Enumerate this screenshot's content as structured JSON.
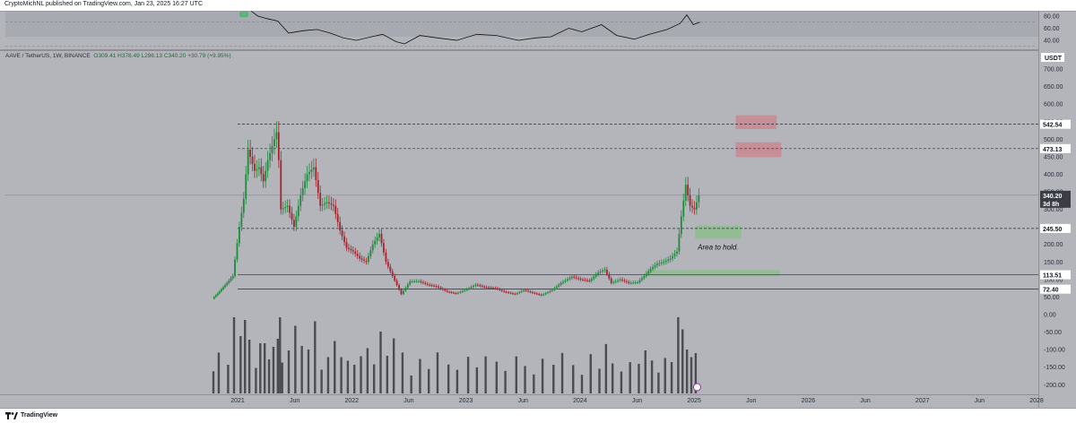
{
  "header": {
    "published": "CryptoMichNL published on TradingView.com, Jan 23, 2025 16:27 UTC"
  },
  "footer": {
    "brand": "TradingView"
  },
  "legend": {
    "symbol": "AAVE / TetherUS, 1W, BINANCE",
    "ohlc": "O309.41 H378.49 L296.13 C340.20 +30.79 (+9.95%)"
  },
  "colors": {
    "up": "#1f8a3c",
    "down": "#a3242c",
    "volume": "#4a4c52",
    "resistance_zone": "#c98a94",
    "support_zone": "#8fbe8f",
    "rsi_line": "#111111"
  },
  "chart_data": {
    "type": "candlestick",
    "currency": "USDT",
    "interval": "1W",
    "x_ticks": [
      "2021",
      "Jun",
      "2022",
      "Jun",
      "2023",
      "Jun",
      "2024",
      "Jun",
      "2025",
      "Jun",
      "2026",
      "Jun",
      "2027",
      "Jun",
      "2028"
    ],
    "price_ticks": [
      "700.00",
      "650.00",
      "600.00",
      "550.00",
      "500.00",
      "450.00",
      "400.00",
      "350.00",
      "300.00",
      "250.00",
      "200.00",
      "150.00",
      "100.00",
      "50.00",
      "0.00",
      "-50.00",
      "-100.00",
      "-150.00",
      "-200.00"
    ],
    "rsi_ticks": [
      "80.00",
      "60.00",
      "40.00"
    ],
    "levels": [
      {
        "label": "542.54",
        "value": 542.54,
        "style": "dashed"
      },
      {
        "label": "473.13",
        "value": 473.13,
        "style": "dashed"
      },
      {
        "label": "245.50",
        "value": 245.5,
        "style": "dashed"
      },
      {
        "label": "113.51",
        "value": 113.51,
        "style": "solid"
      },
      {
        "label": "72.40",
        "value": 72.4,
        "style": "solid"
      }
    ],
    "current_price": {
      "label": "340.20",
      "countdown": "3d 8h",
      "value": 340.2
    },
    "zones": [
      {
        "kind": "resistance",
        "from": "2025-05-15",
        "to": "2025-09-20",
        "low": 530,
        "high": 567
      },
      {
        "kind": "resistance",
        "from": "2025-05-15",
        "to": "2025-10-05",
        "low": 450,
        "high": 490
      },
      {
        "kind": "support",
        "from": "2025-01-05",
        "to": "2025-05-30",
        "low": 218,
        "high": 252
      },
      {
        "kind": "support",
        "from": "2024-08-01",
        "to": "2025-09-30",
        "low": 110,
        "high": 125
      }
    ],
    "annotations": [
      {
        "text": "Area to hold."
      }
    ],
    "price_path": [
      [
        "2020-10-15",
        45
      ],
      [
        "2020-11-01",
        60
      ],
      [
        "2020-12-01",
        90
      ],
      [
        "2020-12-20",
        110
      ],
      [
        "2021-01-10",
        250
      ],
      [
        "2021-01-24",
        330
      ],
      [
        "2021-02-07",
        470
      ],
      [
        "2021-02-28",
        410
      ],
      [
        "2021-03-14",
        420
      ],
      [
        "2021-03-28",
        380
      ],
      [
        "2021-04-11",
        440
      ],
      [
        "2021-04-25",
        480
      ],
      [
        "2021-05-09",
        520
      ],
      [
        "2021-05-16",
        440
      ],
      [
        "2021-05-23",
        300
      ],
      [
        "2021-06-13",
        310
      ],
      [
        "2021-07-04",
        250
      ],
      [
        "2021-07-25",
        340
      ],
      [
        "2021-08-15",
        400
      ],
      [
        "2021-09-05",
        420
      ],
      [
        "2021-09-26",
        310
      ],
      [
        "2021-10-17",
        320
      ],
      [
        "2021-11-07",
        310
      ],
      [
        "2021-11-28",
        240
      ],
      [
        "2021-12-19",
        190
      ],
      [
        "2022-01-09",
        180
      ],
      [
        "2022-01-30",
        160
      ],
      [
        "2022-02-20",
        150
      ],
      [
        "2022-03-13",
        200
      ],
      [
        "2022-04-03",
        230
      ],
      [
        "2022-04-24",
        150
      ],
      [
        "2022-05-15",
        110
      ],
      [
        "2022-06-12",
        58
      ],
      [
        "2022-07-10",
        95
      ],
      [
        "2022-08-07",
        95
      ],
      [
        "2022-09-04",
        85
      ],
      [
        "2022-10-02",
        80
      ],
      [
        "2022-11-06",
        65
      ],
      [
        "2022-12-04",
        60
      ],
      [
        "2023-01-08",
        72
      ],
      [
        "2023-02-05",
        85
      ],
      [
        "2023-03-05",
        78
      ],
      [
        "2023-04-09",
        75
      ],
      [
        "2023-05-07",
        65
      ],
      [
        "2023-06-11",
        58
      ],
      [
        "2023-07-09",
        70
      ],
      [
        "2023-08-06",
        62
      ],
      [
        "2023-09-03",
        55
      ],
      [
        "2023-10-08",
        70
      ],
      [
        "2023-11-05",
        90
      ],
      [
        "2023-12-10",
        108
      ],
      [
        "2024-01-07",
        100
      ],
      [
        "2024-02-04",
        96
      ],
      [
        "2024-03-03",
        120
      ],
      [
        "2024-03-24",
        128
      ],
      [
        "2024-04-14",
        90
      ],
      [
        "2024-05-12",
        100
      ],
      [
        "2024-06-09",
        90
      ],
      [
        "2024-07-07",
        92
      ],
      [
        "2024-07-28",
        110
      ],
      [
        "2024-08-18",
        130
      ],
      [
        "2024-09-08",
        145
      ],
      [
        "2024-09-29",
        150
      ],
      [
        "2024-10-20",
        160
      ],
      [
        "2024-11-10",
        180
      ],
      [
        "2024-11-24",
        280
      ],
      [
        "2024-12-08",
        370
      ],
      [
        "2024-12-22",
        310
      ],
      [
        "2025-01-05",
        300
      ],
      [
        "2025-01-19",
        340
      ]
    ],
    "rsi_path": [
      [
        "2021-02-14",
        88
      ],
      [
        "2021-03-07",
        80
      ],
      [
        "2021-04-04",
        76
      ],
      [
        "2021-05-09",
        72
      ],
      [
        "2021-06-13",
        52
      ],
      [
        "2021-08-01",
        56
      ],
      [
        "2021-09-12",
        58
      ],
      [
        "2021-10-24",
        52
      ],
      [
        "2021-12-05",
        44
      ],
      [
        "2022-01-16",
        40
      ],
      [
        "2022-03-06",
        46
      ],
      [
        "2022-04-10",
        50
      ],
      [
        "2022-05-22",
        38
      ],
      [
        "2022-06-19",
        34
      ],
      [
        "2022-08-07",
        48
      ],
      [
        "2022-10-02",
        44
      ],
      [
        "2022-12-04",
        40
      ],
      [
        "2023-02-05",
        50
      ],
      [
        "2023-04-09",
        48
      ],
      [
        "2023-06-18",
        40
      ],
      [
        "2023-08-13",
        44
      ],
      [
        "2023-10-01",
        46
      ],
      [
        "2023-11-26",
        60
      ],
      [
        "2024-01-07",
        54
      ],
      [
        "2024-03-10",
        66
      ],
      [
        "2024-04-28",
        48
      ],
      [
        "2024-06-23",
        42
      ],
      [
        "2024-08-11",
        50
      ],
      [
        "2024-10-06",
        58
      ],
      [
        "2024-11-17",
        68
      ],
      [
        "2024-12-08",
        82
      ],
      [
        "2024-12-29",
        66
      ],
      [
        "2025-01-19",
        70
      ]
    ]
  }
}
